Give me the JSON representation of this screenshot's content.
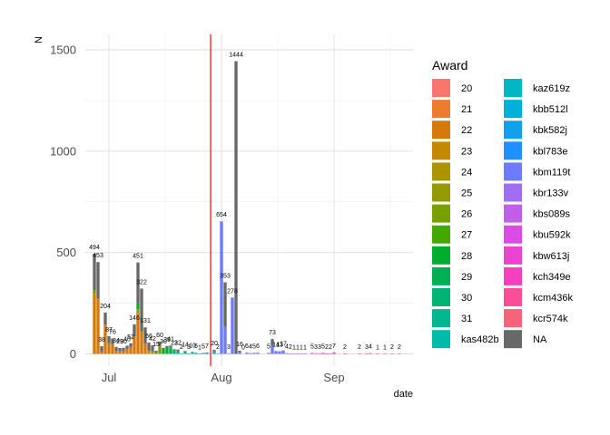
{
  "chart_data": {
    "type": "bar",
    "stacked": true,
    "title": "",
    "xlabel": "date",
    "ylabel": "N",
    "ylim": [
      0,
      1600
    ],
    "y_ticks": [
      0,
      500,
      1000,
      1500
    ],
    "x_range": [
      -3.5,
      85
    ],
    "x_ticks": [
      {
        "label": "Jul",
        "x": 4
      },
      {
        "label": "Aug",
        "x": 35
      },
      {
        "label": "Sep",
        "x": 66
      }
    ],
    "grid": true,
    "legend_position": "right",
    "legend_title": "Award",
    "vline": {
      "x": 32,
      "color": "#ff0000"
    },
    "series": [
      {
        "name": "20",
        "color": "#F8766D"
      },
      {
        "name": "21",
        "color": "#EE7C2E"
      },
      {
        "name": "22",
        "color": "#D6790B"
      },
      {
        "name": "23",
        "color": "#C38A00"
      },
      {
        "name": "24",
        "color": "#AC9300"
      },
      {
        "name": "25",
        "color": "#949A00"
      },
      {
        "name": "26",
        "color": "#76A100"
      },
      {
        "name": "27",
        "color": "#45A800"
      },
      {
        "name": "28",
        "color": "#00AD2F"
      },
      {
        "name": "29",
        "color": "#00B054"
      },
      {
        "name": "30",
        "color": "#00B474"
      },
      {
        "name": "31",
        "color": "#00B792"
      },
      {
        "name": "kas482b",
        "color": "#00BAAA"
      },
      {
        "name": "kaz619z",
        "color": "#00B7C3"
      },
      {
        "name": "kbb512l",
        "color": "#00B0DA"
      },
      {
        "name": "kbk582j",
        "color": "#11A0EE"
      },
      {
        "name": "kbl783e",
        "color": "#1E90FF"
      },
      {
        "name": "kbm119t",
        "color": "#6C7BFF"
      },
      {
        "name": "kbr133v",
        "color": "#A16EF7"
      },
      {
        "name": "kbs089s",
        "color": "#C35EEC"
      },
      {
        "name": "kbu592k",
        "color": "#DB4BE5"
      },
      {
        "name": "kbw613j",
        "color": "#EC42D4"
      },
      {
        "name": "kch349e",
        "color": "#F63FBF"
      },
      {
        "name": "kcm436k",
        "color": "#FC4E98"
      },
      {
        "name": "kcr574k",
        "color": "#F8627A"
      },
      {
        "name": "NA",
        "color": "#696969"
      }
    ],
    "bars": [
      {
        "x": 0,
        "total": 494,
        "label": "494",
        "segments": [
          {
            "s": "22",
            "v": 300
          },
          {
            "s": "27",
            "v": 14
          },
          {
            "s": "NA",
            "v": 180
          }
        ]
      },
      {
        "x": 1,
        "total": 453,
        "label": "453",
        "segments": [
          {
            "s": "22",
            "v": 273
          },
          {
            "s": "NA",
            "v": 180
          }
        ]
      },
      {
        "x": 2,
        "total": 38,
        "label": "38",
        "segments": [
          {
            "s": "22",
            "v": 8
          },
          {
            "s": "NA",
            "v": 30
          }
        ]
      },
      {
        "x": 3,
        "total": 204,
        "label": "204",
        "segments": [
          {
            "s": "22",
            "v": 144
          },
          {
            "s": "NA",
            "v": 60
          }
        ]
      },
      {
        "x": 4,
        "total": 87,
        "label": "87",
        "segments": [
          {
            "s": "22",
            "v": 52
          },
          {
            "s": "NA",
            "v": 35
          }
        ]
      },
      {
        "x": 5,
        "total": 76,
        "label": "76",
        "segments": [
          {
            "s": "22",
            "v": 46
          },
          {
            "s": "NA",
            "v": 30
          }
        ]
      },
      {
        "x": 6,
        "total": 34,
        "label": "34",
        "segments": [
          {
            "s": "22",
            "v": 14
          },
          {
            "s": "NA",
            "v": 20
          }
        ]
      },
      {
        "x": 7,
        "total": 29,
        "label": "29",
        "segments": [
          {
            "s": "22",
            "v": 12
          },
          {
            "s": "NA",
            "v": 17
          }
        ]
      },
      {
        "x": 8,
        "total": 30,
        "label": "30",
        "segments": [
          {
            "s": "22",
            "v": 12
          },
          {
            "s": "NA",
            "v": 18
          }
        ]
      },
      {
        "x": 9,
        "total": 40,
        "label": "40",
        "segments": [
          {
            "s": "22",
            "v": 25
          },
          {
            "s": "NA",
            "v": 15
          }
        ]
      },
      {
        "x": 10,
        "total": 52,
        "label": "52",
        "segments": [
          {
            "s": "22",
            "v": 34
          },
          {
            "s": "NA",
            "v": 18
          }
        ]
      },
      {
        "x": 11,
        "total": 146,
        "label": "146",
        "segments": [
          {
            "s": "22",
            "v": 86
          },
          {
            "s": "NA",
            "v": 60
          }
        ]
      },
      {
        "x": 12,
        "total": 451,
        "label": "451",
        "segments": [
          {
            "s": "22",
            "v": 200
          },
          {
            "s": "24",
            "v": 20
          },
          {
            "s": "28",
            "v": 31
          },
          {
            "s": "NA",
            "v": 200
          }
        ]
      },
      {
        "x": 13,
        "total": 322,
        "label": "322",
        "segments": [
          {
            "s": "22",
            "v": 112
          },
          {
            "s": "NA",
            "v": 210
          }
        ]
      },
      {
        "x": 14,
        "total": 131,
        "label": "131",
        "segments": [
          {
            "s": "22",
            "v": 51
          },
          {
            "s": "NA",
            "v": 80
          }
        ]
      },
      {
        "x": 15,
        "total": 56,
        "label": "56",
        "segments": [
          {
            "s": "23",
            "v": 16
          },
          {
            "s": "NA",
            "v": 40
          }
        ]
      },
      {
        "x": 16,
        "total": 42,
        "label": "42",
        "segments": [
          {
            "s": "24",
            "v": 12
          },
          {
            "s": "NA",
            "v": 30
          }
        ]
      },
      {
        "x": 17,
        "total": 15,
        "label": "15",
        "segments": [
          {
            "s": "26",
            "v": 5
          },
          {
            "s": "NA",
            "v": 10
          }
        ]
      },
      {
        "x": 18,
        "total": 60,
        "label": "60",
        "segments": [
          {
            "s": "26",
            "v": 40
          },
          {
            "s": "NA",
            "v": 20
          }
        ]
      },
      {
        "x": 19,
        "total": 30,
        "label": "30",
        "segments": [
          {
            "s": "28",
            "v": 22
          },
          {
            "s": "NA",
            "v": 8
          }
        ]
      },
      {
        "x": 20,
        "total": 39,
        "label": "39",
        "segments": [
          {
            "s": "28",
            "v": 29
          },
          {
            "s": "NA",
            "v": 10
          }
        ]
      },
      {
        "x": 21,
        "total": 41,
        "label": "41",
        "segments": [
          {
            "s": "29",
            "v": 33
          },
          {
            "s": "NA",
            "v": 8
          }
        ]
      },
      {
        "x": 22,
        "total": 23,
        "label": "23",
        "segments": [
          {
            "s": "30",
            "v": 17
          },
          {
            "s": "NA",
            "v": 6
          }
        ]
      },
      {
        "x": 23,
        "total": 22,
        "label": "22",
        "segments": [
          {
            "s": "30",
            "v": 16
          },
          {
            "s": "NA",
            "v": 6
          }
        ]
      },
      {
        "x": 24,
        "total": 2,
        "label": "2",
        "segments": [
          {
            "s": "30",
            "v": 2
          }
        ]
      },
      {
        "x": 25,
        "total": 14,
        "label": "14",
        "segments": [
          {
            "s": "31",
            "v": 11
          },
          {
            "s": "NA",
            "v": 3
          }
        ]
      },
      {
        "x": 26,
        "total": 3,
        "label": "3",
        "segments": [
          {
            "s": "31",
            "v": 3
          }
        ]
      },
      {
        "x": 27,
        "total": 10,
        "label": "10",
        "segments": [
          {
            "s": "31",
            "v": 10
          }
        ]
      },
      {
        "x": 28,
        "total": 6,
        "label": "6",
        "segments": [
          {
            "s": "kas482b",
            "v": 6
          }
        ]
      },
      {
        "x": 29,
        "total": 1,
        "label": "1",
        "segments": [
          {
            "s": "kas482b",
            "v": 1
          }
        ]
      },
      {
        "x": 30,
        "total": 5,
        "label": "5",
        "segments": [
          {
            "s": "kas482b",
            "v": 5
          }
        ]
      },
      {
        "x": 31,
        "total": 7,
        "label": "7",
        "segments": [
          {
            "s": "kaz619z",
            "v": 7
          }
        ]
      },
      {
        "x": 33,
        "total": 20,
        "label": "20",
        "segments": [
          {
            "s": "kbb512l",
            "v": 12
          },
          {
            "s": "NA",
            "v": 8
          }
        ]
      },
      {
        "x": 34,
        "total": 2,
        "label": "2",
        "segments": [
          {
            "s": "kbm119t",
            "v": 2
          }
        ]
      },
      {
        "x": 35,
        "total": 654,
        "label": "654",
        "segments": [
          {
            "s": "kbm119t",
            "v": 654
          }
        ]
      },
      {
        "x": 36,
        "total": 353,
        "label": "353",
        "segments": [
          {
            "s": "kbm119t",
            "v": 133
          },
          {
            "s": "NA",
            "v": 220
          }
        ]
      },
      {
        "x": 37,
        "total": 3,
        "label": "3",
        "segments": [
          {
            "s": "kbm119t",
            "v": 3
          }
        ]
      },
      {
        "x": 38,
        "total": 278,
        "label": "278",
        "segments": [
          {
            "s": "kbm119t",
            "v": 278
          }
        ]
      },
      {
        "x": 39,
        "total": 1444,
        "label": "1444",
        "segments": [
          {
            "s": "NA",
            "v": 1444
          }
        ]
      },
      {
        "x": 40,
        "total": 16,
        "label": "16",
        "segments": [
          {
            "s": "kbm119t",
            "v": 8
          },
          {
            "s": "NA",
            "v": 8
          }
        ]
      },
      {
        "x": 41,
        "total": 0,
        "label": "0",
        "segments": []
      },
      {
        "x": 42,
        "total": 6,
        "label": "6",
        "segments": [
          {
            "s": "kbm119t",
            "v": 6
          }
        ]
      },
      {
        "x": 43,
        "total": 4,
        "label": "4",
        "segments": [
          {
            "s": "kbm119t",
            "v": 4
          }
        ]
      },
      {
        "x": 44,
        "total": 5,
        "label": "5",
        "segments": [
          {
            "s": "kbm119t",
            "v": 5
          }
        ]
      },
      {
        "x": 45,
        "total": 6,
        "label": "6",
        "segments": [
          {
            "s": "kbm119t",
            "v": 6
          }
        ]
      },
      {
        "x": 48,
        "total": 5,
        "label": "5",
        "segments": [
          {
            "s": "kbm119t",
            "v": 5
          }
        ]
      },
      {
        "x": 49,
        "total": 73,
        "label": "73",
        "segments": [
          {
            "s": "kbm119t",
            "v": 40
          },
          {
            "s": "NA",
            "v": 33
          }
        ]
      },
      {
        "x": 50,
        "total": 14,
        "label": "14",
        "segments": [
          {
            "s": "kbm119t",
            "v": 14
          }
        ]
      },
      {
        "x": 51,
        "total": 13,
        "label": "13",
        "segments": [
          {
            "s": "kbm119t",
            "v": 13
          }
        ]
      },
      {
        "x": 52,
        "total": 17,
        "label": "17",
        "segments": [
          {
            "s": "kbm119t",
            "v": 17
          }
        ]
      },
      {
        "x": 53,
        "total": 4,
        "label": "4",
        "segments": [
          {
            "s": "kbr133v",
            "v": 4
          }
        ]
      },
      {
        "x": 54,
        "total": 2,
        "label": "2",
        "segments": [
          {
            "s": "kbr133v",
            "v": 2
          }
        ]
      },
      {
        "x": 55,
        "total": 1,
        "label": "1",
        "segments": [
          {
            "s": "kbr133v",
            "v": 1
          }
        ]
      },
      {
        "x": 56,
        "total": 1,
        "label": "1",
        "segments": [
          {
            "s": "kbs089s",
            "v": 1
          }
        ]
      },
      {
        "x": 57,
        "total": 1,
        "label": "1",
        "segments": [
          {
            "s": "kbs089s",
            "v": 1
          }
        ]
      },
      {
        "x": 58,
        "total": 1,
        "label": "1",
        "segments": [
          {
            "s": "kbs089s",
            "v": 1
          }
        ]
      },
      {
        "x": 60,
        "total": 5,
        "label": "5",
        "segments": [
          {
            "s": "kbu592k",
            "v": 5
          }
        ]
      },
      {
        "x": 61,
        "total": 3,
        "label": "3",
        "segments": [
          {
            "s": "kbu592k",
            "v": 3
          }
        ]
      },
      {
        "x": 62,
        "total": 3,
        "label": "3",
        "segments": [
          {
            "s": "kbw613j",
            "v": 3
          }
        ]
      },
      {
        "x": 63,
        "total": 5,
        "label": "5",
        "segments": [
          {
            "s": "kbw613j",
            "v": 5
          }
        ]
      },
      {
        "x": 64,
        "total": 2,
        "label": "2",
        "segments": [
          {
            "s": "kch349e",
            "v": 2
          }
        ]
      },
      {
        "x": 65,
        "total": 2,
        "label": "2",
        "segments": [
          {
            "s": "kch349e",
            "v": 2
          }
        ]
      },
      {
        "x": 66,
        "total": 7,
        "label": "7",
        "segments": [
          {
            "s": "kch349e",
            "v": 7
          }
        ]
      },
      {
        "x": 69,
        "total": 2,
        "label": "2",
        "segments": [
          {
            "s": "kcm436k",
            "v": 2
          }
        ]
      },
      {
        "x": 73,
        "total": 2,
        "label": "2",
        "segments": [
          {
            "s": "kcm436k",
            "v": 2
          }
        ]
      },
      {
        "x": 75,
        "total": 3,
        "label": "3",
        "segments": [
          {
            "s": "kcr574k",
            "v": 3
          }
        ]
      },
      {
        "x": 76,
        "total": 4,
        "label": "4",
        "segments": [
          {
            "s": "kcr574k",
            "v": 4
          }
        ]
      },
      {
        "x": 78,
        "total": 1,
        "label": "1",
        "segments": [
          {
            "s": "kcr574k",
            "v": 1
          }
        ]
      },
      {
        "x": 80,
        "total": 1,
        "label": "1",
        "segments": [
          {
            "s": "kcr574k",
            "v": 1
          }
        ]
      },
      {
        "x": 82,
        "total": 2,
        "label": "2",
        "segments": [
          {
            "s": "kcr574k",
            "v": 2
          }
        ]
      },
      {
        "x": 84,
        "total": 2,
        "label": "2",
        "segments": [
          {
            "s": "kcr574k",
            "v": 2
          }
        ]
      }
    ]
  }
}
